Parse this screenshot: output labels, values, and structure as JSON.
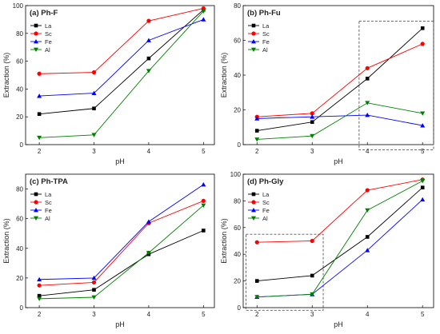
{
  "colors": {
    "La": "#000000",
    "Sc": "#ff0000",
    "Fe": "#0000ff",
    "Al": "#008000"
  },
  "chart_data": [
    {
      "type": "line",
      "title": "(a) Ph-F",
      "xlabel": "pH",
      "ylabel": "Extraction (%)",
      "x": [
        2,
        3,
        4,
        5
      ],
      "xlim": [
        1.75,
        5.2
      ],
      "ylim": [
        0,
        100
      ],
      "yticks": [
        0,
        20,
        40,
        60,
        80,
        100
      ],
      "legend_position": "top-left",
      "series": [
        {
          "name": "La",
          "marker": "square",
          "values": [
            22,
            26,
            62,
            97
          ]
        },
        {
          "name": "Sc",
          "marker": "circle",
          "values": [
            51,
            52,
            89,
            98
          ]
        },
        {
          "name": "Fe",
          "marker": "triangle-up",
          "values": [
            35,
            37,
            75,
            90
          ]
        },
        {
          "name": "Al",
          "marker": "triangle-down",
          "values": [
            5,
            7,
            53,
            96
          ]
        }
      ]
    },
    {
      "type": "line",
      "title": "(b) Ph-Fu",
      "xlabel": "pH",
      "ylabel": "Extraction (%)",
      "x": [
        2,
        3,
        4,
        5
      ],
      "xlim": [
        1.75,
        5.2
      ],
      "ylim": [
        0,
        80
      ],
      "yticks": [
        0,
        20,
        40,
        60,
        80
      ],
      "legend_position": "top-left",
      "highlight_box": {
        "x": [
          3.85,
          5.2
        ],
        "y": [
          -3,
          71
        ]
      },
      "series": [
        {
          "name": "La",
          "marker": "square",
          "values": [
            8,
            13,
            38,
            67
          ]
        },
        {
          "name": "Sc",
          "marker": "circle",
          "values": [
            16,
            18,
            44,
            58
          ]
        },
        {
          "name": "Fe",
          "marker": "triangle-up",
          "values": [
            15,
            16,
            17,
            11
          ]
        },
        {
          "name": "Al",
          "marker": "triangle-down",
          "values": [
            3,
            5,
            24,
            18
          ]
        }
      ]
    },
    {
      "type": "line",
      "title": "(c) Ph-TPA",
      "xlabel": "pH",
      "ylabel": "Extraction (%)",
      "x": [
        2,
        3,
        4,
        5
      ],
      "xlim": [
        1.75,
        5.2
      ],
      "ylim": [
        0,
        90
      ],
      "yticks": [
        0,
        20,
        40,
        60,
        80
      ],
      "legend_position": "top-left",
      "series": [
        {
          "name": "La",
          "marker": "square",
          "values": [
            8,
            12,
            36,
            52
          ]
        },
        {
          "name": "Sc",
          "marker": "circle",
          "values": [
            15,
            17,
            57,
            72
          ]
        },
        {
          "name": "Fe",
          "marker": "triangle-up",
          "values": [
            19,
            20,
            58,
            83
          ]
        },
        {
          "name": "Al",
          "marker": "triangle-down",
          "values": [
            6,
            7,
            37,
            69
          ]
        }
      ]
    },
    {
      "type": "line",
      "title": "(d) Ph-Gly",
      "xlabel": "pH",
      "ylabel": "Extraction (%)",
      "x": [
        2,
        3,
        4,
        5
      ],
      "xlim": [
        1.75,
        5.2
      ],
      "ylim": [
        0,
        100
      ],
      "yticks": [
        0,
        20,
        40,
        60,
        80,
        100
      ],
      "legend_position": "top-left",
      "highlight_box": {
        "x": [
          1.8,
          3.2
        ],
        "y": [
          -2,
          55
        ]
      },
      "series": [
        {
          "name": "La",
          "marker": "square",
          "values": [
            20,
            24,
            53,
            90
          ]
        },
        {
          "name": "Sc",
          "marker": "circle",
          "values": [
            49,
            50,
            88,
            96
          ]
        },
        {
          "name": "Fe",
          "marker": "triangle-up",
          "values": [
            8,
            10,
            43,
            81
          ]
        },
        {
          "name": "Al",
          "marker": "triangle-down",
          "values": [
            8,
            10,
            73,
            95
          ]
        }
      ]
    }
  ]
}
